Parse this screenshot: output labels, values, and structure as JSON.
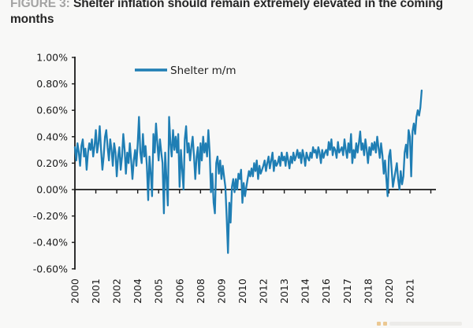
{
  "figure": {
    "label": "FIGURE 3:",
    "title_rest": " Shelter inflation should remain extremely elevated in the coming months"
  },
  "legend": {
    "series_label": "Shelter m/m"
  },
  "colors": {
    "line": "#1f7eb4",
    "axis": "#1a1a1a",
    "tick_text": "#1a1a1a",
    "title_label": "#a3a3a3",
    "title_text": "#262626",
    "background": "#f8f8f7",
    "watermark_orange": "#e2a143"
  },
  "chart_data": {
    "type": "line",
    "title": "Shelter m/m",
    "series_name": "Shelter m/m",
    "frequency": "monthly",
    "x_start": "2000-01",
    "x_end": "2022-02",
    "x_tick_labels": [
      "2000",
      "2001",
      "2002",
      "2004",
      "2005",
      "2006",
      "2008",
      "2009",
      "2010",
      "2012",
      "2013",
      "2014",
      "2016",
      "2017",
      "2018",
      "2020",
      "2021"
    ],
    "x_label_interval_months": 16,
    "y_ticks": [
      1.0,
      0.8,
      0.6,
      0.4,
      0.2,
      0.0,
      -0.2,
      -0.4,
      -0.6
    ],
    "y_tick_suffix": "%",
    "ylim": [
      -0.6,
      1.0
    ],
    "grid": false,
    "legend_position": "top-left-inside",
    "values": [
      0.32,
      0.22,
      0.35,
      0.28,
      0.18,
      0.33,
      0.38,
      0.25,
      0.31,
      0.15,
      0.28,
      0.35,
      0.3,
      0.38,
      0.25,
      0.33,
      0.45,
      0.28,
      0.35,
      0.48,
      0.3,
      0.15,
      0.25,
      0.4,
      0.45,
      0.32,
      0.22,
      0.38,
      0.3,
      0.18,
      0.35,
      0.28,
      0.1,
      0.25,
      0.32,
      0.15,
      0.25,
      0.42,
      0.3,
      0.12,
      0.28,
      0.2,
      0.35,
      0.22,
      0.08,
      0.22,
      0.3,
      0.18,
      0.35,
      0.55,
      0.28,
      0.2,
      0.42,
      0.25,
      0.33,
      0.18,
      -0.08,
      0.25,
      0.12,
      -0.05,
      0.42,
      0.28,
      0.5,
      0.35,
      0.22,
      0.38,
      0.28,
      0.2,
      -0.18,
      0.28,
      0.08,
      -0.12,
      0.55,
      0.35,
      0.25,
      0.45,
      0.3,
      0.4,
      0.28,
      0.42,
      0.02,
      0.3,
      0.15,
      0.0,
      0.38,
      0.48,
      0.28,
      0.35,
      0.22,
      0.32,
      0.4,
      0.25,
      0.08,
      0.25,
      0.32,
      0.12,
      0.35,
      0.22,
      0.4,
      0.28,
      0.35,
      0.25,
      0.45,
      0.28,
      -0.02,
      0.12,
      -0.1,
      -0.18,
      0.2,
      0.25,
      0.12,
      0.22,
      0.08,
      0.18,
      0.1,
      0.02,
      -0.22,
      -0.48,
      -0.1,
      -0.25,
      0.02,
      0.08,
      -0.02,
      0.08,
      0.0,
      0.12,
      0.08,
      0.15,
      -0.1,
      0.05,
      -0.05,
      0.02,
      0.08,
      0.14,
      0.1,
      0.16,
      0.1,
      0.2,
      0.14,
      0.22,
      0.08,
      0.18,
      0.12,
      0.15,
      0.18,
      0.22,
      0.14,
      0.2,
      0.25,
      0.16,
      0.22,
      0.28,
      0.14,
      0.22,
      0.18,
      0.2,
      0.25,
      0.18,
      0.28,
      0.22,
      0.25,
      0.18,
      0.28,
      0.22,
      0.16,
      0.25,
      0.2,
      0.28,
      0.22,
      0.25,
      0.3,
      0.24,
      0.28,
      0.2,
      0.3,
      0.25,
      0.18,
      0.28,
      0.24,
      0.22,
      0.28,
      0.24,
      0.32,
      0.28,
      0.3,
      0.24,
      0.32,
      0.28,
      0.2,
      0.3,
      0.24,
      0.28,
      0.3,
      0.26,
      0.36,
      0.3,
      0.38,
      0.26,
      0.32,
      0.3,
      0.24,
      0.36,
      0.28,
      0.3,
      0.32,
      0.26,
      0.38,
      0.3,
      0.24,
      0.35,
      0.28,
      0.42,
      0.2,
      0.3,
      0.24,
      0.35,
      0.28,
      0.35,
      0.44,
      0.3,
      0.35,
      0.26,
      0.38,
      0.3,
      0.2,
      0.32,
      0.26,
      0.35,
      0.3,
      0.36,
      0.28,
      0.4,
      0.32,
      0.24,
      0.35,
      0.26,
      0.12,
      0.22,
      0.08,
      -0.05,
      0.25,
      0.3,
      0.16,
      0.02,
      0.08,
      0.14,
      0.2,
      0.08,
      0.0,
      0.14,
      0.04,
      0.1,
      0.28,
      0.34,
      0.24,
      0.45,
      0.4,
      0.1,
      0.44,
      0.5,
      0.42,
      0.55,
      0.6,
      0.56,
      0.62,
      0.75
    ]
  }
}
